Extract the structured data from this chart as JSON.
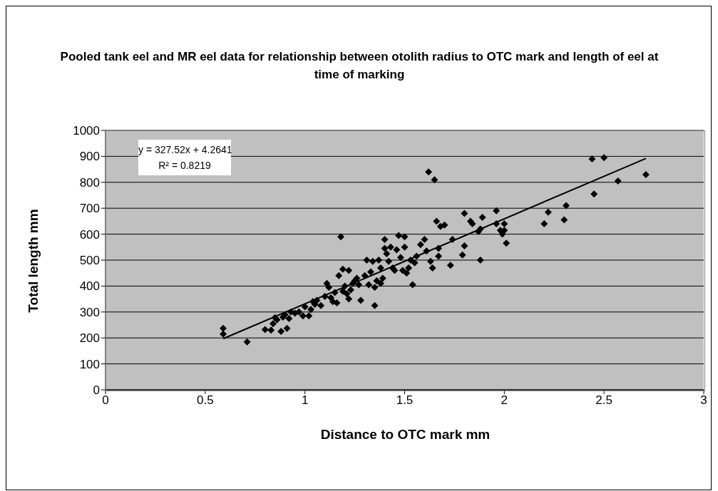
{
  "chart_data": {
    "type": "scatter",
    "title": "Pooled tank eel and MR eel data for relationship between otolith radius to OTC mark and length of eel at time of marking",
    "xlabel": "Distance to OTC mark mm",
    "ylabel": "Total length mm",
    "annotations": [
      "y = 327.52x + 4.2641",
      "R² = 0.8219"
    ],
    "xlim": [
      0,
      3
    ],
    "xticks": [
      0,
      0.5,
      1,
      1.5,
      2,
      2.5,
      3
    ],
    "ylim": [
      0,
      1000
    ],
    "yticks": [
      0,
      100,
      200,
      300,
      400,
      500,
      600,
      700,
      800,
      900,
      1000
    ],
    "grid": "y",
    "legend": false,
    "marker": "diamond",
    "series": [
      {
        "color": "#000000",
        "x": [
          0.59,
          0.59,
          0.71,
          0.8,
          0.83,
          0.84,
          0.85,
          0.86,
          0.88,
          0.89,
          0.9,
          0.91,
          0.92,
          0.93,
          0.95,
          0.97,
          0.99,
          1.0,
          1.02,
          1.03,
          1.04,
          1.05,
          1.06,
          1.08,
          1.1,
          1.11,
          1.12,
          1.13,
          1.14,
          1.15,
          1.16,
          1.17,
          1.18,
          1.19,
          1.19,
          1.2,
          1.21,
          1.22,
          1.22,
          1.23,
          1.24,
          1.25,
          1.26,
          1.27,
          1.28,
          1.3,
          1.31,
          1.32,
          1.33,
          1.34,
          1.35,
          1.35,
          1.36,
          1.37,
          1.38,
          1.38,
          1.39,
          1.4,
          1.4,
          1.41,
          1.42,
          1.43,
          1.44,
          1.45,
          1.46,
          1.47,
          1.48,
          1.49,
          1.5,
          1.5,
          1.51,
          1.52,
          1.53,
          1.54,
          1.55,
          1.56,
          1.58,
          1.6,
          1.61,
          1.62,
          1.63,
          1.64,
          1.65,
          1.66,
          1.67,
          1.67,
          1.68,
          1.7,
          1.73,
          1.74,
          1.79,
          1.8,
          1.8,
          1.83,
          1.84,
          1.87,
          1.88,
          1.89,
          1.88,
          1.96,
          1.96,
          1.98,
          1.99,
          2.0,
          2.0,
          2.01,
          2.2,
          2.22,
          2.3,
          2.31,
          2.44,
          2.45,
          2.5,
          2.57,
          2.71
        ],
        "values": [
          237,
          215,
          185,
          232,
          230,
          255,
          278,
          270,
          225,
          280,
          290,
          237,
          275,
          300,
          295,
          300,
          285,
          320,
          285,
          310,
          340,
          330,
          345,
          325,
          360,
          410,
          395,
          355,
          340,
          375,
          335,
          440,
          590,
          465,
          380,
          400,
          370,
          350,
          460,
          385,
          410,
          420,
          430,
          405,
          345,
          440,
          500,
          405,
          455,
          495,
          325,
          395,
          420,
          500,
          470,
          410,
          430,
          545,
          580,
          525,
          495,
          550,
          470,
          460,
          540,
          595,
          510,
          460,
          590,
          550,
          450,
          470,
          500,
          405,
          490,
          515,
          560,
          580,
          535,
          840,
          495,
          470,
          810,
          650,
          545,
          515,
          630,
          635,
          480,
          580,
          520,
          555,
          680,
          650,
          640,
          610,
          620,
          665,
          500,
          690,
          640,
          615,
          600,
          615,
          640,
          565,
          640,
          685,
          655,
          710,
          890,
          755,
          895,
          805,
          830
        ]
      },
      {
        "type": "line",
        "marker": "none",
        "color": "#000000",
        "x": [
          0.59,
          2.71
        ],
        "values": [
          197,
          892
        ]
      }
    ]
  }
}
